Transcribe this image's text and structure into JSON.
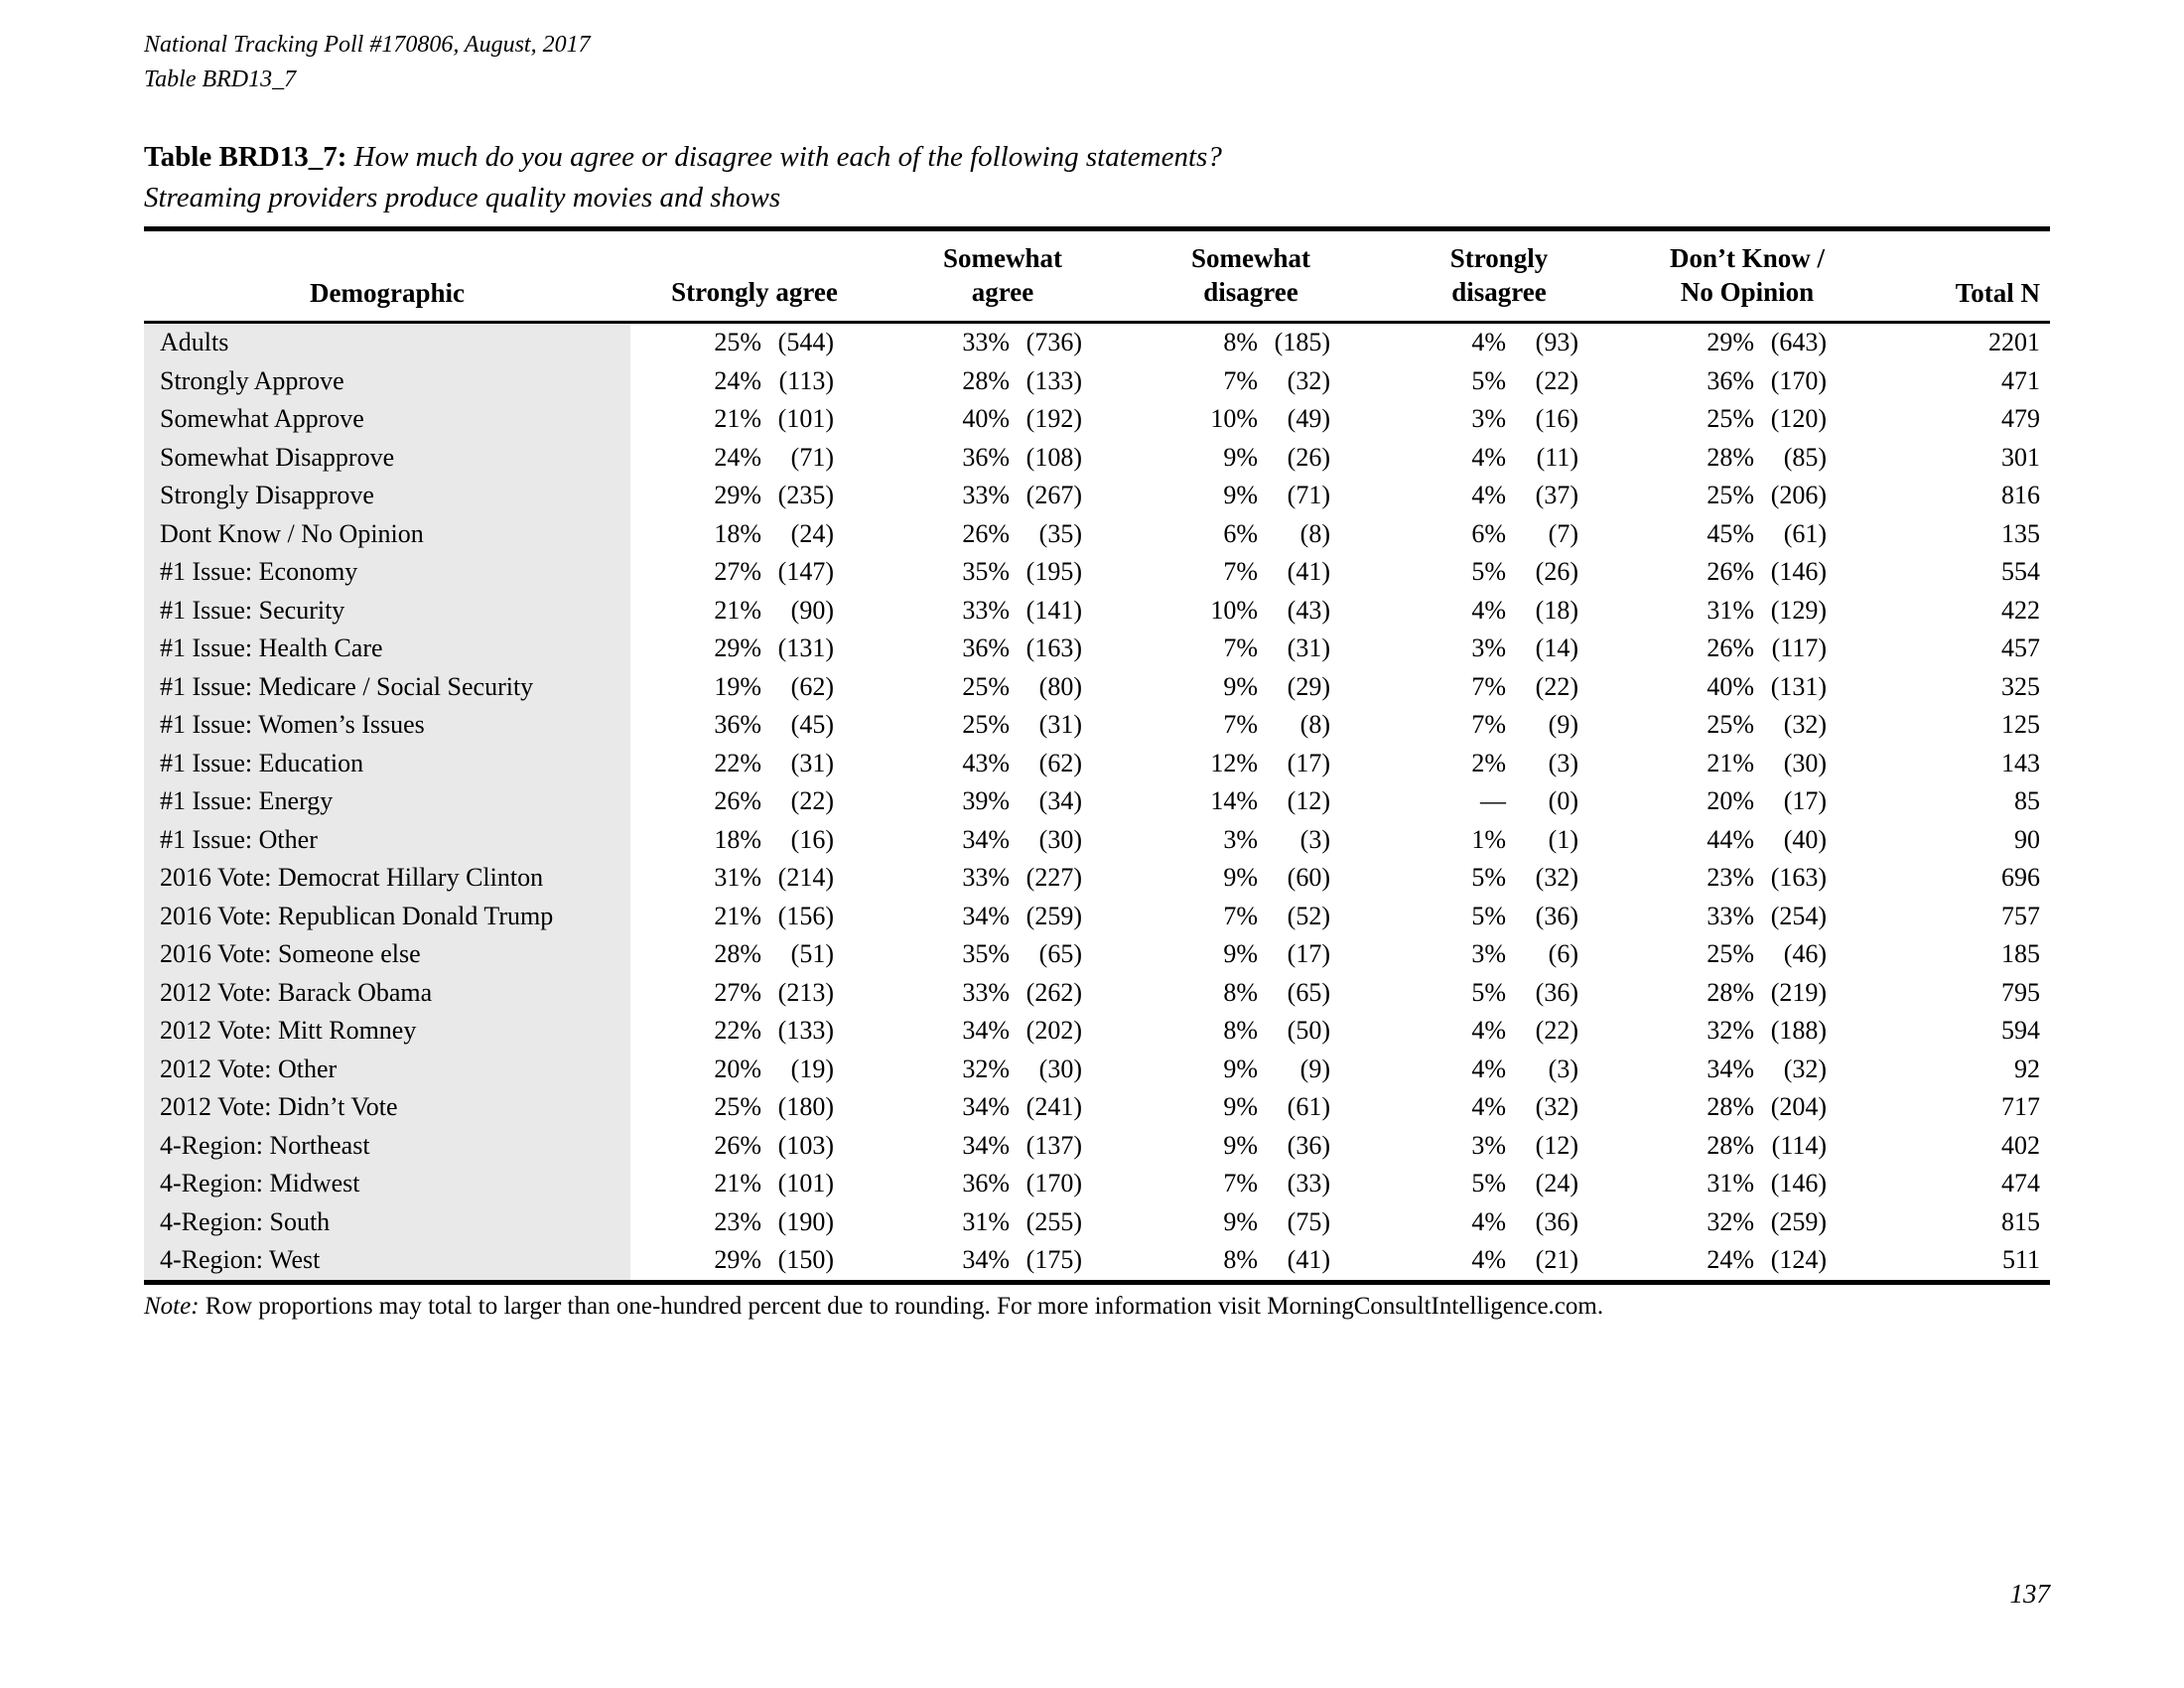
{
  "meta": {
    "poll_line": "National Tracking Poll #170806, August, 2017",
    "table_line": "Table BRD13_7",
    "page_number": "137"
  },
  "title": {
    "label": "Table BRD13_7:",
    "question": "How much do you agree or disagree with each of the following statements?",
    "statement": "Streaming providers produce quality movies and shows"
  },
  "note": {
    "label": "Note:",
    "text": "Row proportions may total to larger than one-hundred percent due to rounding. For more information visit MorningConsultIntelligence.com."
  },
  "table": {
    "header": {
      "demographic": "Demographic",
      "groups": [
        {
          "line1": "",
          "line2": "Strongly agree"
        },
        {
          "line1": "Somewhat",
          "line2": "agree"
        },
        {
          "line1": "Somewhat",
          "line2": "disagree"
        },
        {
          "line1": "Strongly",
          "line2": "disagree"
        },
        {
          "line1": "Don’t Know /",
          "line2": "No Opinion"
        }
      ],
      "total": "Total N"
    },
    "rows": [
      [
        "Adults",
        "25%",
        "(544)",
        "33%",
        "(736)",
        "8%",
        "(185)",
        "4%",
        "(93)",
        "29%",
        "(643)",
        "2201"
      ],
      [
        "Strongly Approve",
        "24%",
        "(113)",
        "28%",
        "(133)",
        "7%",
        "(32)",
        "5%",
        "(22)",
        "36%",
        "(170)",
        "471"
      ],
      [
        "Somewhat Approve",
        "21%",
        "(101)",
        "40%",
        "(192)",
        "10%",
        "(49)",
        "3%",
        "(16)",
        "25%",
        "(120)",
        "479"
      ],
      [
        "Somewhat Disapprove",
        "24%",
        "(71)",
        "36%",
        "(108)",
        "9%",
        "(26)",
        "4%",
        "(11)",
        "28%",
        "(85)",
        "301"
      ],
      [
        "Strongly Disapprove",
        "29%",
        "(235)",
        "33%",
        "(267)",
        "9%",
        "(71)",
        "4%",
        "(37)",
        "25%",
        "(206)",
        "816"
      ],
      [
        "Dont Know / No Opinion",
        "18%",
        "(24)",
        "26%",
        "(35)",
        "6%",
        "(8)",
        "6%",
        "(7)",
        "45%",
        "(61)",
        "135"
      ],
      [
        "#1 Issue: Economy",
        "27%",
        "(147)",
        "35%",
        "(195)",
        "7%",
        "(41)",
        "5%",
        "(26)",
        "26%",
        "(146)",
        "554"
      ],
      [
        "#1 Issue: Security",
        "21%",
        "(90)",
        "33%",
        "(141)",
        "10%",
        "(43)",
        "4%",
        "(18)",
        "31%",
        "(129)",
        "422"
      ],
      [
        "#1 Issue: Health Care",
        "29%",
        "(131)",
        "36%",
        "(163)",
        "7%",
        "(31)",
        "3%",
        "(14)",
        "26%",
        "(117)",
        "457"
      ],
      [
        "#1 Issue: Medicare / Social Security",
        "19%",
        "(62)",
        "25%",
        "(80)",
        "9%",
        "(29)",
        "7%",
        "(22)",
        "40%",
        "(131)",
        "325"
      ],
      [
        "#1 Issue: Women’s Issues",
        "36%",
        "(45)",
        "25%",
        "(31)",
        "7%",
        "(8)",
        "7%",
        "(9)",
        "25%",
        "(32)",
        "125"
      ],
      [
        "#1 Issue: Education",
        "22%",
        "(31)",
        "43%",
        "(62)",
        "12%",
        "(17)",
        "2%",
        "(3)",
        "21%",
        "(30)",
        "143"
      ],
      [
        "#1 Issue: Energy",
        "26%",
        "(22)",
        "39%",
        "(34)",
        "14%",
        "(12)",
        "—",
        "(0)",
        "20%",
        "(17)",
        "85"
      ],
      [
        "#1 Issue: Other",
        "18%",
        "(16)",
        "34%",
        "(30)",
        "3%",
        "(3)",
        "1%",
        "(1)",
        "44%",
        "(40)",
        "90"
      ],
      [
        "2016 Vote: Democrat Hillary Clinton",
        "31%",
        "(214)",
        "33%",
        "(227)",
        "9%",
        "(60)",
        "5%",
        "(32)",
        "23%",
        "(163)",
        "696"
      ],
      [
        "2016 Vote: Republican Donald Trump",
        "21%",
        "(156)",
        "34%",
        "(259)",
        "7%",
        "(52)",
        "5%",
        "(36)",
        "33%",
        "(254)",
        "757"
      ],
      [
        "2016 Vote: Someone else",
        "28%",
        "(51)",
        "35%",
        "(65)",
        "9%",
        "(17)",
        "3%",
        "(6)",
        "25%",
        "(46)",
        "185"
      ],
      [
        "2012 Vote: Barack Obama",
        "27%",
        "(213)",
        "33%",
        "(262)",
        "8%",
        "(65)",
        "5%",
        "(36)",
        "28%",
        "(219)",
        "795"
      ],
      [
        "2012 Vote: Mitt Romney",
        "22%",
        "(133)",
        "34%",
        "(202)",
        "8%",
        "(50)",
        "4%",
        "(22)",
        "32%",
        "(188)",
        "594"
      ],
      [
        "2012 Vote: Other",
        "20%",
        "(19)",
        "32%",
        "(30)",
        "9%",
        "(9)",
        "4%",
        "(3)",
        "34%",
        "(32)",
        "92"
      ],
      [
        "2012 Vote: Didn’t Vote",
        "25%",
        "(180)",
        "34%",
        "(241)",
        "9%",
        "(61)",
        "4%",
        "(32)",
        "28%",
        "(204)",
        "717"
      ],
      [
        "4-Region: Northeast",
        "26%",
        "(103)",
        "34%",
        "(137)",
        "9%",
        "(36)",
        "3%",
        "(12)",
        "28%",
        "(114)",
        "402"
      ],
      [
        "4-Region: Midwest",
        "21%",
        "(101)",
        "36%",
        "(170)",
        "7%",
        "(33)",
        "5%",
        "(24)",
        "31%",
        "(146)",
        "474"
      ],
      [
        "4-Region: South",
        "23%",
        "(190)",
        "31%",
        "(255)",
        "9%",
        "(75)",
        "4%",
        "(36)",
        "32%",
        "(259)",
        "815"
      ],
      [
        "4-Region: West",
        "29%",
        "(150)",
        "34%",
        "(175)",
        "8%",
        "(41)",
        "4%",
        "(21)",
        "24%",
        "(124)",
        "511"
      ]
    ]
  }
}
